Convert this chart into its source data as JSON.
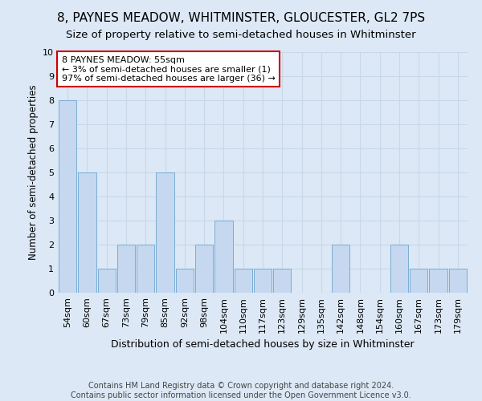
{
  "title": "8, PAYNES MEADOW, WHITMINSTER, GLOUCESTER, GL2 7PS",
  "subtitle": "Size of property relative to semi-detached houses in Whitminster",
  "xlabel": "Distribution of semi-detached houses by size in Whitminster",
  "ylabel": "Number of semi-detached properties",
  "footnote1": "Contains HM Land Registry data © Crown copyright and database right 2024.",
  "footnote2": "Contains public sector information licensed under the Open Government Licence v3.0.",
  "annotation_text": "8 PAYNES MEADOW: 55sqm\n← 3% of semi-detached houses are smaller (1)\n97% of semi-detached houses are larger (36) →",
  "categories": [
    "54sqm",
    "60sqm",
    "67sqm",
    "73sqm",
    "79sqm",
    "85sqm",
    "92sqm",
    "98sqm",
    "104sqm",
    "110sqm",
    "117sqm",
    "123sqm",
    "129sqm",
    "135sqm",
    "142sqm",
    "148sqm",
    "154sqm",
    "160sqm",
    "167sqm",
    "173sqm",
    "179sqm"
  ],
  "values": [
    8,
    5,
    1,
    2,
    2,
    5,
    1,
    2,
    3,
    1,
    1,
    1,
    0,
    0,
    2,
    0,
    0,
    2,
    1,
    1,
    1
  ],
  "bar_color": "#c5d8f0",
  "bar_edge_color": "#7aadd4",
  "annotation_box_edge_color": "#cc0000",
  "annotation_box_face_color": "#ffffff",
  "ylim": [
    0,
    10
  ],
  "yticks": [
    0,
    1,
    2,
    3,
    4,
    5,
    6,
    7,
    8,
    9,
    10
  ],
  "grid_color": "#c8d8e8",
  "bg_color": "#dce8f5",
  "plot_bg_color": "#dce8f5",
  "title_fontsize": 11,
  "subtitle_fontsize": 9.5,
  "xlabel_fontsize": 9,
  "ylabel_fontsize": 8.5,
  "tick_fontsize": 8,
  "annotation_fontsize": 8,
  "footnote_fontsize": 7
}
